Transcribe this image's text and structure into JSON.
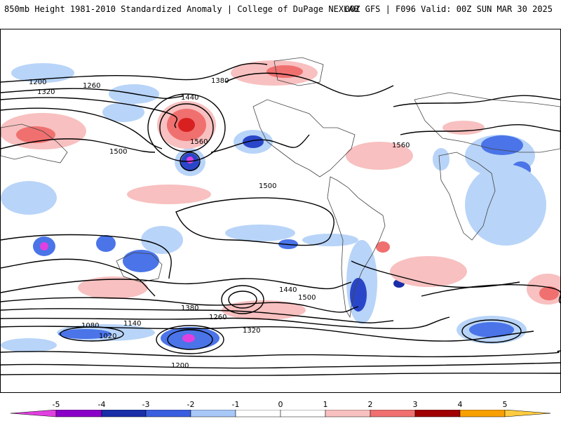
{
  "header": {
    "title": "850mb Height 1981-2010 Standardized Anomaly | College of DuPage NEXLAB",
    "run_info": "00Z GFS | F096 Valid: 00Z SUN MAR 30 2025"
  },
  "colorbar": {
    "labels": [
      "-5",
      "-4",
      "-3",
      "-2",
      "-1",
      "0",
      "1",
      "2",
      "3",
      "4",
      "5"
    ],
    "colors": [
      "#e040e0",
      "#8a00c8",
      "#1a2ea8",
      "#3a5ee0",
      "#a8c8f8",
      "#ffffff",
      "#f8c0c0",
      "#f07070",
      "#d82020",
      "#a00000",
      "#f8a000"
    ]
  },
  "map": {
    "contour_labels": [
      "1200",
      "1260",
      "1320",
      "1380",
      "1440",
      "1500",
      "1560",
      "1500",
      "1560",
      "1500",
      "1440",
      "1380",
      "1320",
      "1260",
      "1200",
      "1140",
      "1080",
      "1020"
    ],
    "colors": {
      "positive_light": "#f8c0c0",
      "positive_mid": "#f07070",
      "positive_strong": "#d82020",
      "negative_light": "#b8d4f8",
      "negative_mid": "#4a74e8",
      "negative_strong": "#1a2ea8",
      "negative_extreme": "#e040e0"
    }
  }
}
